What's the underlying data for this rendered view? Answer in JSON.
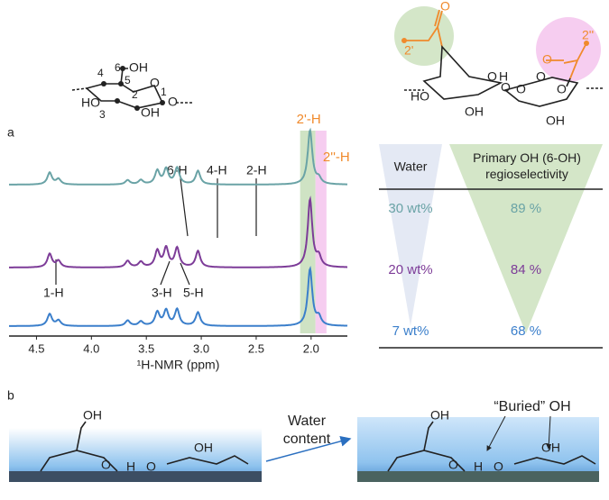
{
  "panel_a": {
    "label": "a",
    "structure_left": {
      "labels": [
        "4",
        "6",
        "OH",
        "5",
        "O",
        "1",
        "O",
        "HO",
        "3",
        "2",
        "OH"
      ]
    },
    "structure_right": {
      "labels": [
        "2'",
        "2''",
        "O",
        "O",
        "O",
        "H",
        "O",
        "O",
        "HO",
        "OH",
        "O",
        "OH",
        "O"
      ]
    },
    "chart_data": {
      "type": "line",
      "xlabel": "¹H-NMR (ppm)",
      "xlim": [
        4.75,
        1.67
      ],
      "xticks": [
        4.5,
        {
          "value": 4,
          "label": "4.0"
        },
        3.5,
        {
          "value": 3,
          "label": "3.0"
        },
        2.5,
        {
          "value": 2,
          "label": "2.0"
        }
      ],
      "peaks_ppm": [
        4.38,
        4.3,
        3.67,
        3.55,
        3.4,
        3.32,
        3.22,
        3.03,
        2.01,
        1.93
      ],
      "series": [
        {
          "color": "#6aa3a6",
          "values": [
            22,
            10,
            8,
            8,
            25,
            28,
            30,
            25,
            100,
            10
          ]
        },
        {
          "color": "#7d3c98",
          "values": [
            25,
            12,
            12,
            10,
            30,
            35,
            35,
            30,
            125,
            18
          ]
        },
        {
          "color": "#3b7fcb",
          "values": [
            22,
            10,
            10,
            8,
            25,
            28,
            30,
            25,
            105,
            15
          ]
        }
      ],
      "bands": [
        {
          "range": [
            2.1,
            1.96
          ],
          "color": "#cfe3c4",
          "label": "2'-H",
          "label_color": "#f08a2c"
        },
        {
          "range": [
            1.96,
            1.86
          ],
          "color": "#f6cdf0",
          "label": "2''-H",
          "label_color": "#f08a2c"
        }
      ],
      "annotations": [
        "6-H",
        "4-H",
        "2-H",
        "1-H",
        "3-H",
        "5-H"
      ]
    },
    "table": {
      "header": [
        "Water",
        "Primary OH (6-OH) regioselectivity"
      ],
      "rows": [
        [
          "30 wt%",
          "89 %"
        ],
        [
          "20 wt%",
          "84 %"
        ],
        [
          "7 wt%",
          "68 %"
        ]
      ],
      "row_colors": [
        "#6aa3a6",
        "#7d3c98",
        "#3b7fcb"
      ]
    }
  },
  "panel_b": {
    "label": "b",
    "arrow_label": [
      "Water",
      "content"
    ],
    "buried_label": "“Buried” OH",
    "left_labels": [
      "OH",
      "O",
      "H",
      "O",
      "OH"
    ],
    "right_labels": [
      "OH",
      "O",
      "H",
      "O",
      "OH"
    ]
  }
}
